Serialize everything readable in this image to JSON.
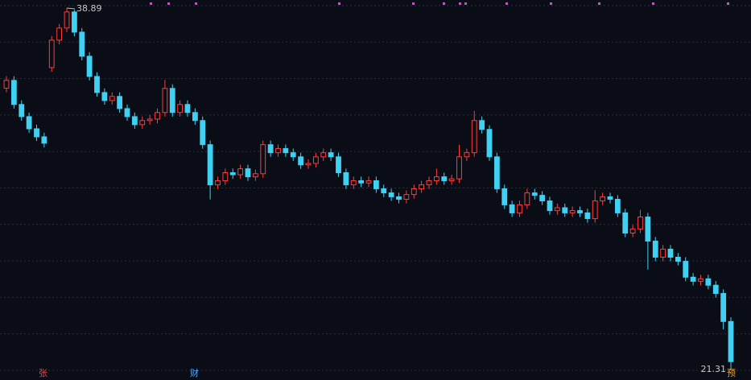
{
  "chart_data": {
    "type": "candlestick",
    "ylim": [
      20.84,
      39.28
    ],
    "up_color": "#ff3b3b",
    "down_color": "#3fd0f2",
    "open": [
      35.0,
      35.38,
      34.21,
      33.62,
      33.03,
      32.64,
      36.0,
      37.33,
      37.92,
      38.7,
      37.72,
      36.55,
      35.57,
      34.79,
      34.4,
      34.6,
      34.01,
      33.62,
      33.23,
      33.43,
      33.5,
      33.82,
      34.99,
      33.82,
      34.21,
      33.82,
      33.43,
      32.26,
      30.31,
      30.51,
      30.9,
      30.8,
      31.09,
      30.7,
      30.85,
      32.26,
      31.87,
      32.07,
      31.87,
      31.67,
      31.28,
      31.35,
      31.67,
      31.87,
      31.67,
      30.9,
      30.31,
      30.51,
      30.4,
      30.51,
      30.12,
      29.92,
      29.73,
      29.61,
      29.84,
      30.12,
      30.31,
      30.51,
      30.7,
      30.51,
      30.6,
      31.67,
      31.87,
      33.43,
      33.0,
      31.67,
      30.12,
      29.34,
      28.95,
      29.34,
      29.92,
      29.8,
      29.53,
      29.06,
      29.2,
      28.95,
      29.06,
      28.95,
      28.67,
      29.53,
      29.73,
      29.61,
      28.95,
      27.97,
      28.17,
      28.75,
      27.58,
      26.8,
      27.19,
      26.8,
      26.6,
      25.83,
      25.63,
      25.75,
      25.44,
      25.04,
      23.68
    ],
    "high": [
      35.58,
      35.58,
      34.41,
      33.82,
      33.23,
      32.84,
      37.53,
      38.12,
      38.89,
      38.8,
      37.92,
      36.75,
      35.77,
      34.99,
      34.8,
      34.8,
      34.21,
      33.82,
      33.63,
      33.7,
      34.02,
      35.4,
      35.19,
      34.41,
      34.41,
      34.02,
      33.63,
      32.46,
      30.71,
      31.1,
      31.1,
      31.29,
      31.29,
      31.05,
      32.46,
      32.46,
      32.27,
      32.27,
      32.07,
      31.87,
      31.55,
      31.87,
      32.07,
      32.07,
      31.87,
      31.1,
      30.71,
      30.71,
      30.71,
      30.71,
      30.32,
      30.12,
      29.93,
      30.04,
      30.32,
      30.51,
      30.71,
      31.1,
      30.9,
      30.8,
      32.26,
      32.07,
      33.9,
      33.63,
      33.2,
      31.87,
      30.32,
      29.54,
      29.54,
      30.12,
      30.12,
      30.0,
      29.73,
      29.4,
      29.4,
      29.26,
      29.26,
      29.15,
      30.05,
      29.93,
      29.93,
      29.81,
      29.15,
      28.37,
      29.1,
      28.95,
      27.78,
      27.39,
      27.39,
      27.0,
      26.8,
      26.03,
      25.95,
      25.95,
      25.64,
      25.24,
      23.88
    ],
    "low": [
      34.8,
      34.01,
      33.42,
      32.83,
      32.44,
      32.13,
      35.8,
      37.13,
      37.72,
      37.52,
      36.35,
      35.37,
      34.59,
      34.2,
      34.2,
      33.81,
      33.42,
      33.03,
      33.03,
      33.23,
      33.3,
      33.62,
      33.62,
      33.62,
      33.62,
      33.23,
      32.06,
      29.6,
      30.11,
      30.31,
      30.6,
      30.6,
      30.5,
      30.5,
      30.65,
      31.67,
      31.67,
      31.67,
      31.47,
      31.08,
      31.08,
      31.15,
      31.47,
      31.47,
      30.7,
      30.11,
      30.11,
      30.2,
      30.2,
      29.92,
      29.72,
      29.53,
      29.41,
      29.41,
      29.64,
      29.92,
      30.11,
      30.31,
      30.31,
      30.31,
      30.4,
      31.47,
      31.67,
      32.8,
      31.47,
      29.92,
      29.14,
      28.75,
      28.75,
      29.14,
      29.6,
      29.33,
      28.86,
      28.86,
      28.75,
      28.75,
      28.75,
      28.47,
      28.47,
      29.33,
      29.41,
      28.75,
      27.77,
      27.77,
      27.97,
      26.2,
      26.6,
      26.6,
      26.6,
      26.4,
      25.63,
      25.43,
      25.43,
      25.24,
      24.84,
      23.3,
      21.31
    ],
    "close": [
      35.38,
      34.21,
      33.62,
      33.03,
      32.64,
      32.33,
      37.33,
      37.92,
      38.7,
      37.72,
      36.55,
      35.57,
      34.79,
      34.4,
      34.6,
      34.01,
      33.62,
      33.23,
      33.43,
      33.5,
      33.82,
      34.99,
      33.82,
      34.21,
      33.82,
      33.43,
      32.26,
      30.31,
      30.51,
      30.9,
      30.8,
      31.09,
      30.7,
      30.85,
      32.26,
      31.87,
      32.07,
      31.87,
      31.67,
      31.28,
      31.35,
      31.67,
      31.87,
      31.67,
      30.9,
      30.31,
      30.51,
      30.4,
      30.51,
      30.12,
      29.92,
      29.73,
      29.61,
      29.84,
      30.12,
      30.31,
      30.51,
      30.7,
      30.51,
      30.6,
      31.67,
      31.87,
      33.43,
      33.0,
      31.67,
      30.12,
      29.34,
      28.95,
      29.34,
      29.92,
      29.8,
      29.53,
      29.06,
      29.2,
      28.95,
      29.06,
      28.95,
      28.67,
      29.53,
      29.73,
      29.61,
      28.95,
      27.97,
      28.17,
      28.75,
      27.58,
      26.8,
      27.19,
      26.8,
      26.6,
      25.83,
      25.63,
      25.75,
      25.44,
      25.04,
      23.68,
      21.73
    ],
    "max_label": "38.89",
    "min_label": "21.31",
    "markers": [
      "张",
      "财",
      "预"
    ]
  }
}
